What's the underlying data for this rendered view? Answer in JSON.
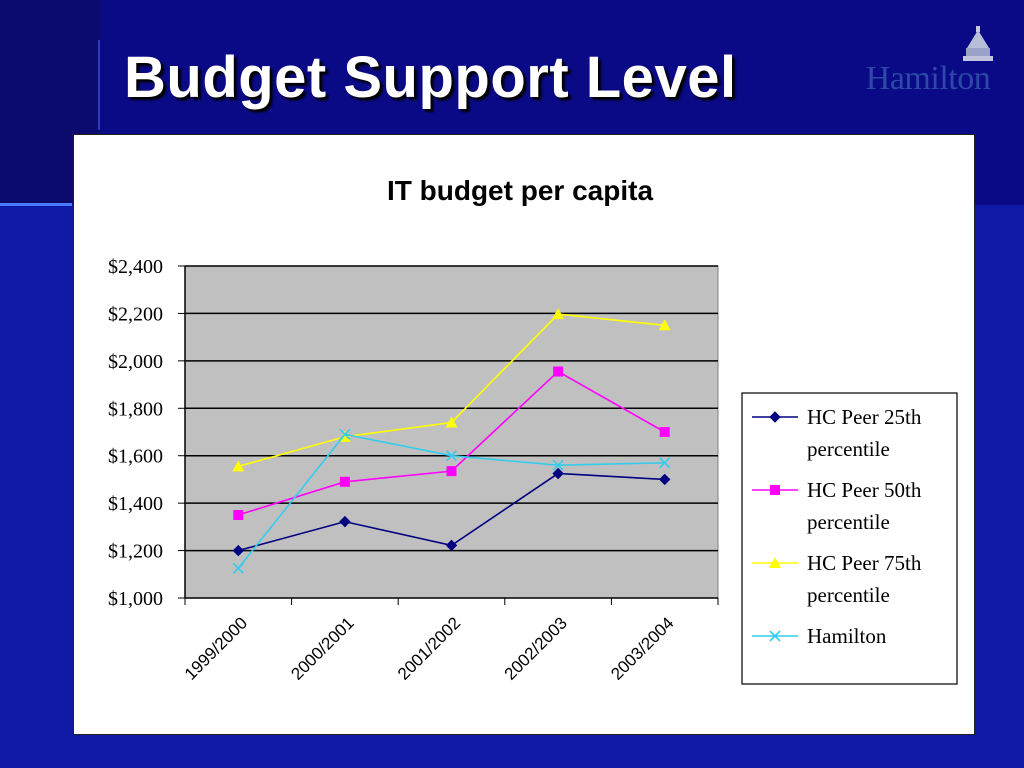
{
  "slide": {
    "title": "Budget Support Level",
    "logo_text": "Hamilton"
  },
  "colors": {
    "background": "#0a0a86",
    "plot_area": "#c0c0c0",
    "series_25": "#000080",
    "series_50": "#ff00ff",
    "series_75": "#ffff00",
    "series_hamilton": "#33ccee"
  },
  "chart_data": {
    "type": "line",
    "title": "IT budget per capita",
    "categories": [
      "1999/2000",
      "2000/2001",
      "2001/2002",
      "2002/2003",
      "2003/2004"
    ],
    "ylim": [
      1000,
      2400
    ],
    "yticks": [
      "$1,000",
      "$1,200",
      "$1,400",
      "$1,600",
      "$1,800",
      "$2,000",
      "$2,200",
      "$2,400"
    ],
    "ytick_values": [
      1000,
      1200,
      1400,
      1600,
      1800,
      2000,
      2200,
      2400
    ],
    "grid": true,
    "legend_position": "right",
    "series": [
      {
        "name": "HC Peer 25th percentile",
        "legend_lines": [
          "HC Peer 25th",
          "percentile"
        ],
        "values": [
          1200,
          1322,
          1222,
          1525,
          1500
        ],
        "color": "#000080",
        "marker": "diamond"
      },
      {
        "name": "HC Peer 50th percentile",
        "legend_lines": [
          "HC Peer 50th",
          "percentile"
        ],
        "values": [
          1350,
          1490,
          1535,
          1955,
          1700
        ],
        "color": "#ff00ff",
        "marker": "square"
      },
      {
        "name": "HC Peer 75th percentile",
        "legend_lines": [
          "HC Peer 75th",
          "percentile"
        ],
        "values": [
          1555,
          1680,
          1740,
          2197,
          2150
        ],
        "color": "#ffff00",
        "marker": "triangle"
      },
      {
        "name": "Hamilton",
        "legend_lines": [
          "Hamilton"
        ],
        "values": [
          1125,
          1690,
          1600,
          1560,
          1570
        ],
        "color": "#33ccee",
        "marker": "x"
      }
    ]
  }
}
